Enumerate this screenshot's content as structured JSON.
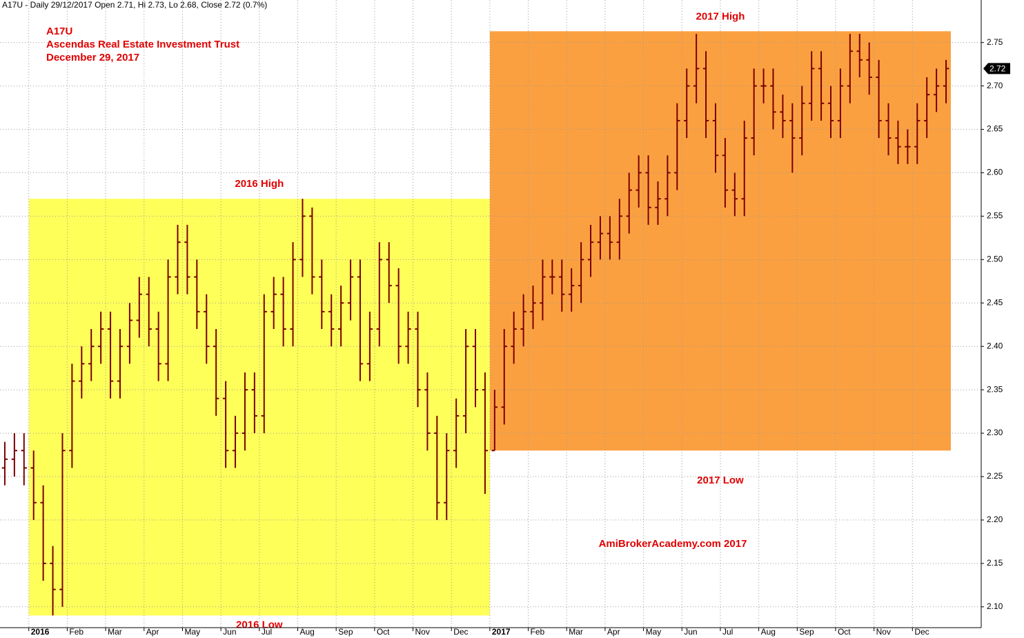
{
  "chart_data": {
    "type": "ohlc",
    "title": "A17U - Daily 29/12/2017 Open 2.71, Hi 2.73, Lo 2.68, Close 2.72 (0.7%)",
    "annotations": [
      "A17U",
      "Ascendas Real Estate Investment Trust",
      "December 29, 2017"
    ],
    "watermark": "AmiBrokerAcademy.com  2017",
    "categories": [
      null,
      null,
      null,
      "2016",
      null,
      null,
      null,
      "Feb",
      null,
      null,
      null,
      "Mar",
      null,
      null,
      null,
      "Apr",
      null,
      null,
      null,
      "May",
      null,
      null,
      null,
      "Jun",
      null,
      null,
      null,
      "Jul",
      null,
      null,
      null,
      "Aug",
      null,
      null,
      null,
      "Sep",
      null,
      null,
      null,
      "Oct",
      null,
      null,
      null,
      "Nov",
      null,
      null,
      null,
      "Dec",
      null,
      null,
      null,
      "2017",
      null,
      null,
      null,
      "Feb",
      null,
      null,
      null,
      "Mar",
      null,
      null,
      null,
      "Apr",
      null,
      null,
      null,
      "May",
      null,
      null,
      null,
      "Jun",
      null,
      null,
      null,
      "Jul",
      null,
      null,
      null,
      "Aug",
      null,
      null,
      null,
      "Sep",
      null,
      null,
      null,
      "Oct",
      null,
      null,
      null,
      "Nov",
      null,
      null,
      null,
      "Dec",
      null,
      null,
      null
    ],
    "open": [
      2.26,
      2.27,
      2.28,
      2.26,
      2.22,
      2.15,
      2.12,
      2.28,
      2.36,
      2.38,
      2.4,
      2.42,
      2.36,
      2.4,
      2.43,
      2.46,
      2.42,
      2.38,
      2.48,
      2.52,
      2.48,
      2.44,
      2.4,
      2.34,
      2.28,
      2.3,
      2.35,
      2.32,
      2.44,
      2.46,
      2.42,
      2.5,
      2.55,
      2.48,
      2.44,
      2.42,
      2.45,
      2.48,
      2.38,
      2.42,
      2.5,
      2.47,
      2.4,
      2.42,
      2.35,
      2.3,
      2.22,
      2.28,
      2.32,
      2.4,
      2.35,
      2.28,
      2.33,
      2.4,
      2.42,
      2.44,
      2.45,
      2.48,
      2.48,
      2.46,
      2.47,
      2.5,
      2.52,
      2.53,
      2.52,
      2.55,
      2.58,
      2.6,
      2.56,
      2.57,
      2.6,
      2.66,
      2.7,
      2.72,
      2.66,
      2.62,
      2.58,
      2.57,
      2.64,
      2.7,
      2.7,
      2.67,
      2.66,
      2.64,
      2.68,
      2.72,
      2.68,
      2.66,
      2.7,
      2.74,
      2.73,
      2.71,
      2.66,
      2.64,
      2.63,
      2.63,
      2.66,
      2.69,
      2.7
    ],
    "high": [
      2.29,
      2.3,
      2.3,
      2.28,
      2.24,
      2.17,
      2.3,
      2.38,
      2.4,
      2.42,
      2.44,
      2.44,
      2.42,
      2.45,
      2.48,
      2.48,
      2.44,
      2.5,
      2.54,
      2.54,
      2.5,
      2.46,
      2.42,
      2.36,
      2.32,
      2.37,
      2.37,
      2.46,
      2.48,
      2.48,
      2.52,
      2.57,
      2.56,
      2.5,
      2.46,
      2.47,
      2.5,
      2.5,
      2.44,
      2.52,
      2.52,
      2.49,
      2.44,
      2.44,
      2.37,
      2.32,
      2.3,
      2.34,
      2.42,
      2.42,
      2.37,
      2.35,
      2.42,
      2.44,
      2.46,
      2.47,
      2.5,
      2.5,
      2.5,
      2.49,
      2.52,
      2.54,
      2.55,
      2.55,
      2.57,
      2.6,
      2.62,
      2.62,
      2.59,
      2.62,
      2.68,
      2.72,
      2.76,
      2.74,
      2.68,
      2.64,
      2.6,
      2.66,
      2.72,
      2.72,
      2.72,
      2.69,
      2.68,
      2.7,
      2.74,
      2.74,
      2.7,
      2.72,
      2.76,
      2.76,
      2.75,
      2.73,
      2.68,
      2.66,
      2.65,
      2.68,
      2.71,
      2.72,
      2.73
    ],
    "low": [
      2.24,
      2.25,
      2.24,
      2.2,
      2.13,
      2.09,
      2.1,
      2.26,
      2.34,
      2.36,
      2.38,
      2.34,
      2.34,
      2.38,
      2.41,
      2.4,
      2.36,
      2.36,
      2.46,
      2.46,
      2.42,
      2.38,
      2.32,
      2.26,
      2.26,
      2.28,
      2.3,
      2.3,
      2.42,
      2.4,
      2.4,
      2.48,
      2.46,
      2.42,
      2.4,
      2.4,
      2.43,
      2.36,
      2.36,
      2.4,
      2.45,
      2.38,
      2.38,
      2.33,
      2.28,
      2.2,
      2.2,
      2.26,
      2.3,
      2.33,
      2.23,
      2.28,
      2.31,
      2.38,
      2.4,
      2.42,
      2.43,
      2.46,
      2.44,
      2.44,
      2.45,
      2.48,
      2.5,
      2.5,
      2.5,
      2.53,
      2.56,
      2.54,
      2.54,
      2.55,
      2.58,
      2.64,
      2.68,
      2.64,
      2.6,
      2.56,
      2.55,
      2.55,
      2.62,
      2.68,
      2.65,
      2.64,
      2.6,
      2.62,
      2.66,
      2.66,
      2.64,
      2.64,
      2.68,
      2.71,
      2.69,
      2.64,
      2.62,
      2.61,
      2.61,
      2.61,
      2.64,
      2.67,
      2.68
    ],
    "close": [
      2.27,
      2.28,
      2.26,
      2.22,
      2.15,
      2.12,
      2.28,
      2.36,
      2.38,
      2.4,
      2.42,
      2.36,
      2.4,
      2.43,
      2.46,
      2.42,
      2.38,
      2.48,
      2.52,
      2.48,
      2.44,
      2.4,
      2.34,
      2.28,
      2.3,
      2.35,
      2.32,
      2.44,
      2.46,
      2.42,
      2.5,
      2.55,
      2.48,
      2.44,
      2.42,
      2.45,
      2.48,
      2.38,
      2.42,
      2.5,
      2.47,
      2.4,
      2.42,
      2.35,
      2.3,
      2.22,
      2.28,
      2.32,
      2.4,
      2.35,
      2.28,
      2.33,
      2.4,
      2.42,
      2.44,
      2.45,
      2.48,
      2.48,
      2.46,
      2.47,
      2.5,
      2.52,
      2.53,
      2.52,
      2.55,
      2.58,
      2.6,
      2.56,
      2.57,
      2.6,
      2.66,
      2.7,
      2.72,
      2.66,
      2.62,
      2.58,
      2.57,
      2.64,
      2.7,
      2.7,
      2.67,
      2.66,
      2.64,
      2.68,
      2.72,
      2.68,
      2.66,
      2.7,
      2.74,
      2.73,
      2.71,
      2.66,
      2.64,
      2.63,
      2.63,
      2.66,
      2.69,
      2.7,
      2.72
    ],
    "color": "#7a0000",
    "last_close": 2.72,
    "ranges": [
      {
        "high_label": "2016 High",
        "low_label": "2016 Low",
        "high": 2.57,
        "low": 2.09,
        "color": "#ffff5a"
      },
      {
        "high_label": "2017 High",
        "low_label": "2017 Low",
        "high": 2.763,
        "low": 2.28,
        "color": "#fba040"
      }
    ],
    "ylim": [
      2.076,
      2.799
    ],
    "yticks": [
      {
        "value": 2.1,
        "label": "2.10"
      },
      2.15,
      {
        "value": 2.2,
        "label": "2.20"
      },
      2.25,
      {
        "value": 2.3,
        "label": "2.30"
      },
      2.35,
      {
        "value": 2.4,
        "label": "2.40"
      },
      2.45,
      {
        "value": 2.5,
        "label": "2.50"
      },
      2.55,
      {
        "value": 2.6,
        "label": "2.60"
      },
      2.65,
      {
        "value": 2.7,
        "label": "2.70"
      },
      2.75
    ],
    "grid": true
  }
}
